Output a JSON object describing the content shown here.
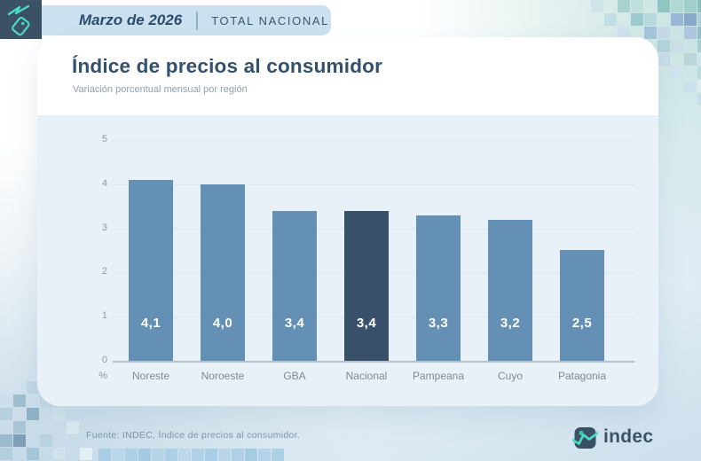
{
  "header": {
    "month": "Marzo de 2026",
    "scope": "TOTAL NACIONAL"
  },
  "card": {
    "title": "Índice de precios al consumidor",
    "subtitle": "Variación porcentual mensual por región"
  },
  "chart_data": {
    "type": "bar",
    "categories": [
      "Noreste",
      "Noroeste",
      "GBA",
      "Nacional",
      "Pampeana",
      "Cuyo",
      "Patagonia"
    ],
    "values": [
      4.1,
      4.0,
      3.4,
      3.4,
      3.3,
      3.2,
      2.5
    ],
    "value_labels": [
      "4,1",
      "4,0",
      "3,4",
      "3,4",
      "3,3",
      "3,2",
      "2,5"
    ],
    "highlight_category": "Nacional",
    "title": "Índice de precios al consumidor",
    "subtitle": "Variación porcentual mensual por región",
    "xlabel": "",
    "ylabel": "%",
    "ylim": [
      0,
      5
    ],
    "yticks": [
      0,
      1,
      2,
      3,
      4,
      5
    ],
    "grid": true,
    "legend": "none",
    "bar_color": "#6590b5",
    "highlight_color": "#39506a",
    "panel_bg": "#e9f1f8"
  },
  "footer": {
    "source": "Fuente: INDEC, Índice de precios al consumidor.",
    "logo_text": "indec"
  },
  "icons": {
    "header_icon": "trend-price-tag-icon",
    "logo_icon": "indec-chart-line-icon"
  },
  "colors": {
    "accent_teal": "#4ed9c4",
    "dark_slate": "#3b5166",
    "band_blue": "#cbe1ef",
    "title_navy": "#33506c"
  }
}
